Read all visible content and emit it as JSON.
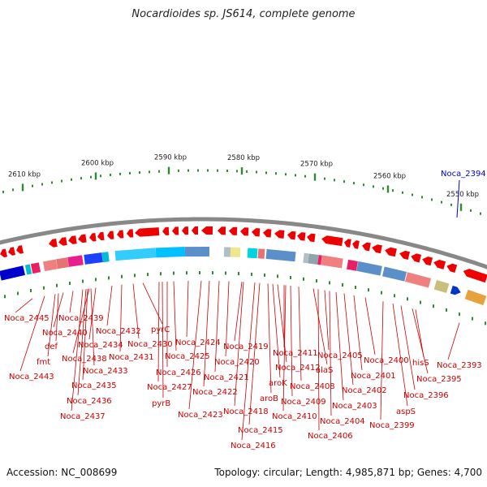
{
  "title": "Nocardioides sp. JS614, complete genome",
  "footer": {
    "accession": "Accession: NC_008699",
    "summary": "Topology: circular; Length: 4,985,871 bp; Genes: 4,700"
  },
  "colors": {
    "gene_red": "#ee0000",
    "label_red": "#cc0000",
    "highlight_blue": "#0000cc",
    "backbone": "#888888",
    "tick_green": "#2e8b2e"
  },
  "scale": {
    "ticks": [
      {
        "label": "2610 kbp"
      },
      {
        "label": "2600 kbp"
      },
      {
        "label": "2590 kbp"
      },
      {
        "label": "2580 kbp"
      },
      {
        "label": "2570 kbp"
      },
      {
        "label": "2560 kbp"
      },
      {
        "label": "2550 kbp"
      }
    ]
  },
  "highlight_gene": "Noca_2394",
  "gene_labels": [
    "Noca_2445",
    "Noca_2443",
    "fmt",
    "def",
    "Noca_2440",
    "Noca_2439",
    "Noca_2438",
    "Noca_2437",
    "Noca_2436",
    "Noca_2435",
    "Noca_2434",
    "Noca_2433",
    "Noca_2432",
    "Noca_2431",
    "Noca_2430",
    "pyrC",
    "Noca_2427",
    "pyrB",
    "Noca_2426",
    "Noca_2425",
    "Noca_2424",
    "Noca_2423",
    "Noca_2422",
    "Noca_2421",
    "Noca_2420",
    "Noca_2419",
    "Noca_2418",
    "Noca_2416",
    "Noca_2415",
    "aroB",
    "aroK",
    "Noca_2412",
    "Noca_2411",
    "Noca_2410",
    "Noca_2409",
    "Noca_2408",
    "alaS",
    "Noca_2406",
    "Noca_2405",
    "Noca_2404",
    "Noca_2403",
    "Noca_2402",
    "Noca_2401",
    "Noca_2400",
    "Noca_2399",
    "aspS",
    "Noca_2396",
    "Noca_2395",
    "hisS",
    "Noca_2393"
  ]
}
